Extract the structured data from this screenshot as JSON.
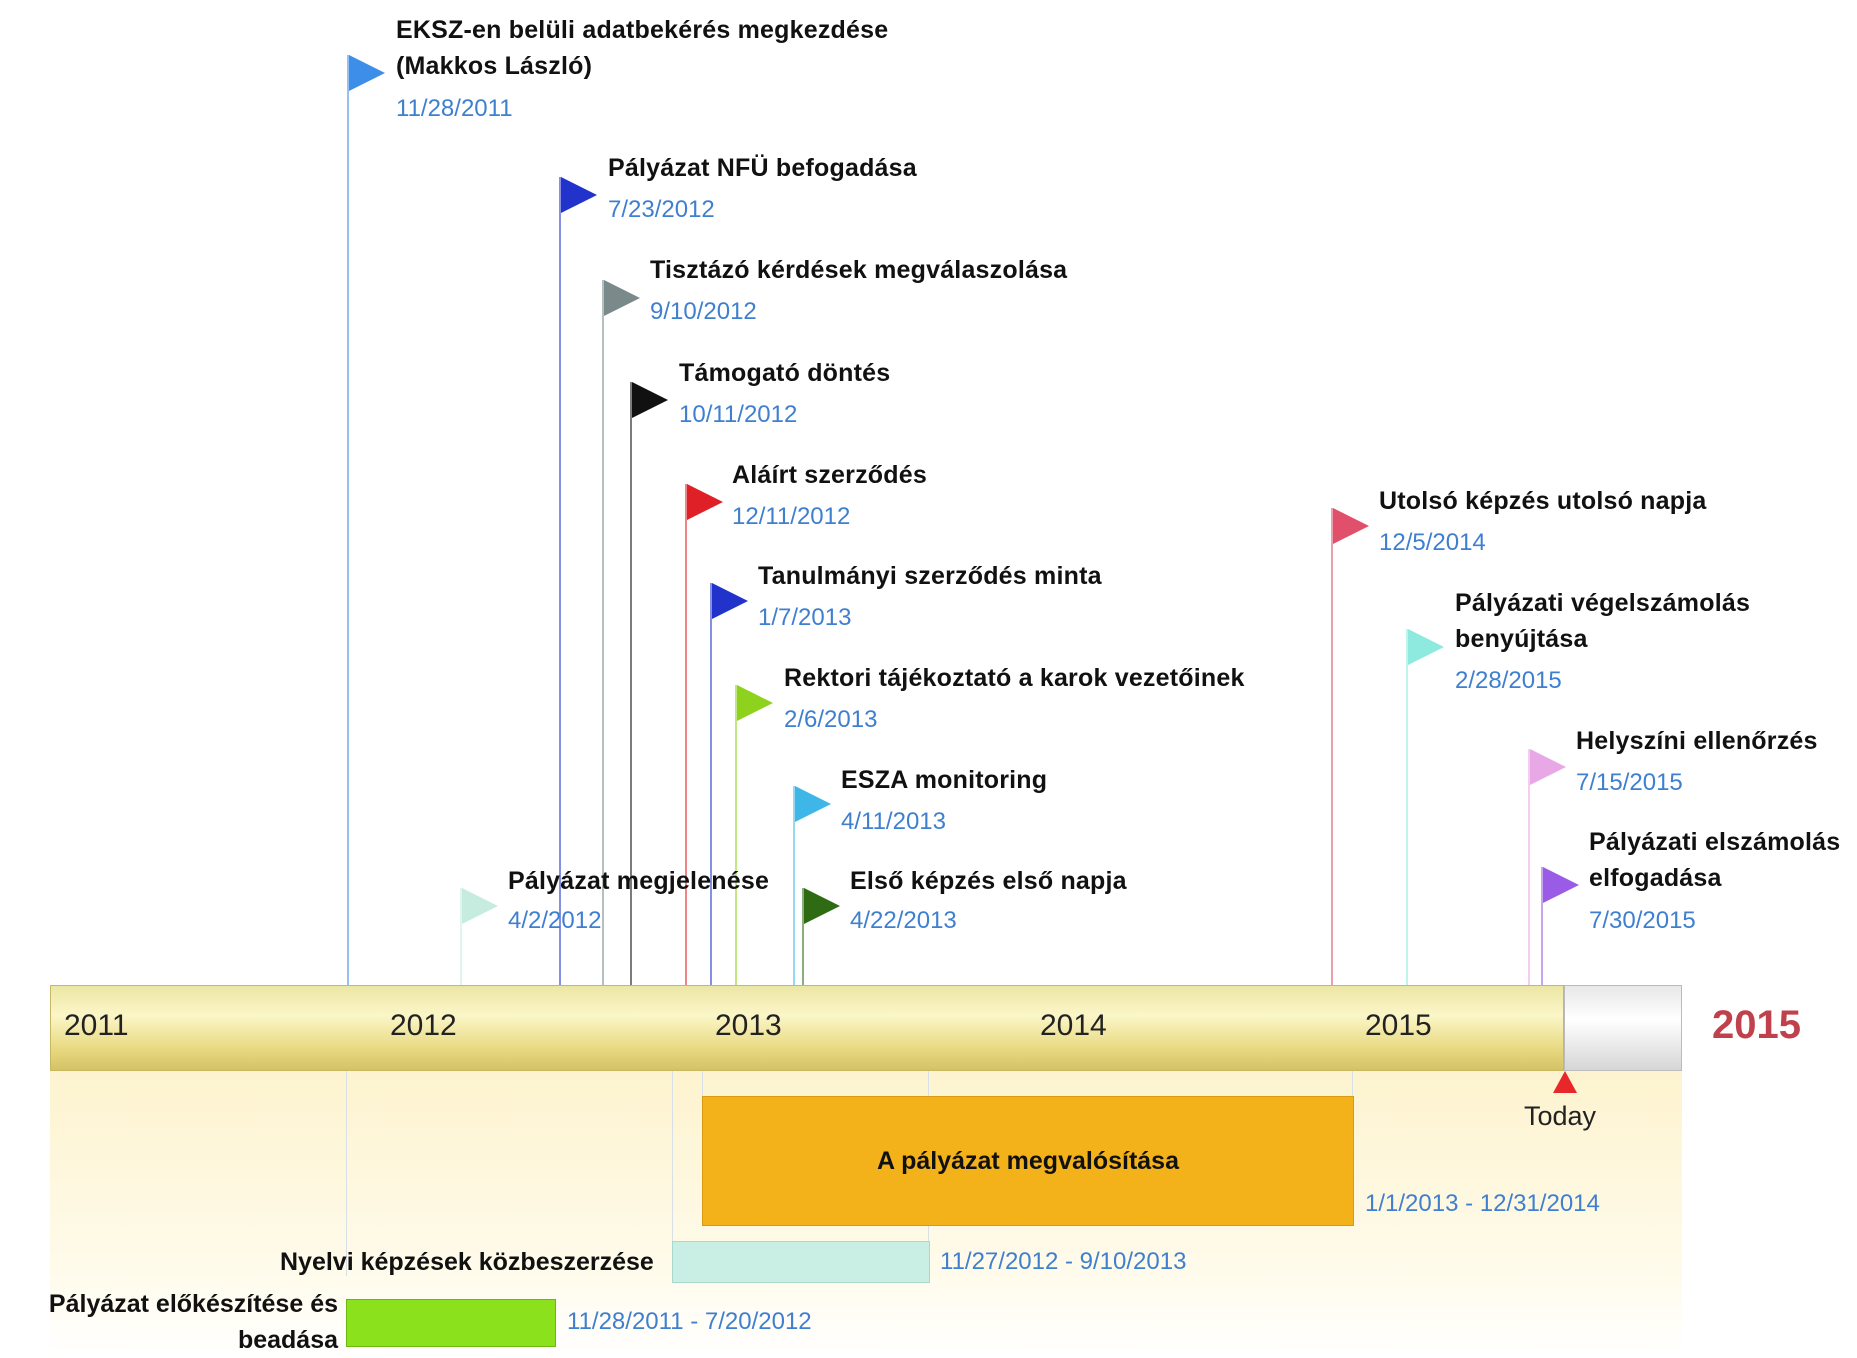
{
  "timeline": {
    "years": [
      "2011",
      "2012",
      "2013",
      "2014",
      "2015"
    ],
    "right_year": "2015",
    "today_label": "Today"
  },
  "milestones": [
    {
      "title": "EKSZ-en belüli adatbekérés megkezdése\n(Makkos László)",
      "date": "11/28/2011",
      "color": "#3d8ee8"
    },
    {
      "title": "Pályázat NFÜ befogadása",
      "date": "7/23/2012",
      "color": "#2233cc"
    },
    {
      "title": "Tisztázó kérdések megválaszolása",
      "date": "9/10/2012",
      "color": "#7a8a8a"
    },
    {
      "title": "Támogató döntés",
      "date": "10/11/2012",
      "color": "#111111"
    },
    {
      "title": "Aláírt szerződés",
      "date": "12/11/2012",
      "color": "#e02027"
    },
    {
      "title": "Tanulmányi szerződés minta",
      "date": "1/7/2013",
      "color": "#2233cc"
    },
    {
      "title": "Rektori tájékoztató a karok vezetőinek",
      "date": "2/6/2013",
      "color": "#8fd21e"
    },
    {
      "title": "ESZA monitoring",
      "date": "4/11/2013",
      "color": "#3fb6e8"
    },
    {
      "title": "Első képzés első napja",
      "date": "4/22/2013",
      "color": "#2e6b12"
    },
    {
      "title": "Pályázat megjelenése",
      "date": "4/2/2012",
      "color": "#c6ece0"
    },
    {
      "title": "Utolsó képzés utolsó napja",
      "date": "12/5/2014",
      "color": "#e0506a"
    },
    {
      "title": "Pályázati végelszámolás\nbenyújtása",
      "date": "2/28/2015",
      "color": "#8eeade"
    },
    {
      "title": "Helyszíni ellenőrzés",
      "date": "7/15/2015",
      "color": "#e8a8e6"
    },
    {
      "title": "Pályázati elszámolás\nelfogadása",
      "date": "7/30/2015",
      "color": "#9a5be6"
    }
  ],
  "bars": [
    {
      "label": "A pályázat megvalósítása",
      "date": "1/1/2013 - 12/31/2014",
      "color": "#f3b11a"
    },
    {
      "label": "Nyelvi képzések közbeszerzése",
      "date": "11/27/2012 - 9/10/2013",
      "color": "#c9efe4"
    },
    {
      "label": "Pályázat előkészítése és\nbeadása",
      "date": "11/28/2011 - 7/20/2012",
      "color": "#8be21c"
    }
  ]
}
